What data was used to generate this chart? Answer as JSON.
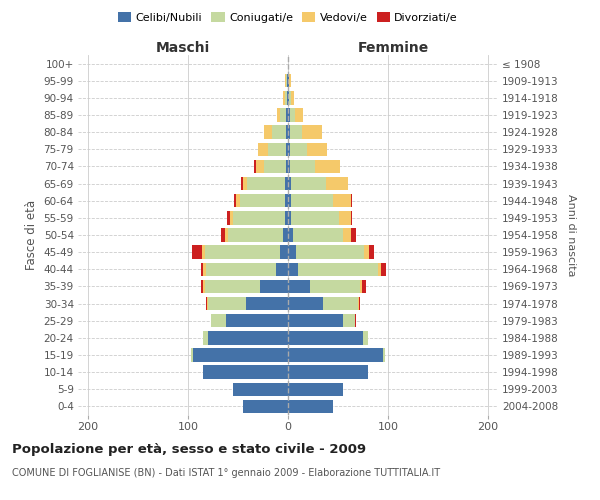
{
  "age_groups": [
    "0-4",
    "5-9",
    "10-14",
    "15-19",
    "20-24",
    "25-29",
    "30-34",
    "35-39",
    "40-44",
    "45-49",
    "50-54",
    "55-59",
    "60-64",
    "65-69",
    "70-74",
    "75-79",
    "80-84",
    "85-89",
    "90-94",
    "95-99",
    "100+"
  ],
  "birth_years": [
    "2004-2008",
    "1999-2003",
    "1994-1998",
    "1989-1993",
    "1984-1988",
    "1979-1983",
    "1974-1978",
    "1969-1973",
    "1964-1968",
    "1959-1963",
    "1954-1958",
    "1949-1953",
    "1944-1948",
    "1939-1943",
    "1934-1938",
    "1929-1933",
    "1924-1928",
    "1919-1923",
    "1914-1918",
    "1909-1913",
    "≤ 1908"
  ],
  "maschi": {
    "celibi": [
      45,
      55,
      85,
      95,
      80,
      62,
      42,
      28,
      12,
      8,
      5,
      3,
      3,
      3,
      2,
      2,
      2,
      2,
      1,
      1,
      0
    ],
    "coniugati": [
      0,
      0,
      0,
      2,
      5,
      15,
      38,
      55,
      70,
      75,
      55,
      52,
      45,
      38,
      22,
      18,
      14,
      6,
      2,
      1,
      0
    ],
    "vedovi": [
      0,
      0,
      0,
      0,
      0,
      0,
      1,
      2,
      3,
      3,
      3,
      3,
      4,
      4,
      8,
      10,
      8,
      3,
      2,
      1,
      0
    ],
    "divorziati": [
      0,
      0,
      0,
      0,
      0,
      0,
      1,
      2,
      2,
      10,
      4,
      3,
      2,
      2,
      2,
      0,
      0,
      0,
      0,
      0,
      0
    ]
  },
  "femmine": {
    "nubili": [
      45,
      55,
      80,
      95,
      75,
      55,
      35,
      22,
      10,
      8,
      5,
      3,
      3,
      3,
      2,
      2,
      2,
      2,
      1,
      1,
      0
    ],
    "coniugate": [
      0,
      0,
      0,
      2,
      5,
      12,
      35,
      50,
      80,
      68,
      50,
      48,
      42,
      35,
      25,
      17,
      12,
      5,
      2,
      0,
      0
    ],
    "vedove": [
      0,
      0,
      0,
      0,
      0,
      0,
      1,
      2,
      3,
      5,
      8,
      12,
      18,
      22,
      25,
      20,
      20,
      8,
      3,
      2,
      0
    ],
    "divorziate": [
      0,
      0,
      0,
      0,
      0,
      1,
      1,
      4,
      5,
      5,
      5,
      1,
      1,
      0,
      0,
      0,
      0,
      0,
      0,
      0,
      0
    ]
  },
  "colors": {
    "celibi": "#4472a8",
    "coniugati": "#c5d9a0",
    "vedovi": "#f5c96a",
    "divorziati": "#cc2020"
  },
  "xlim": 210,
  "title": "Popolazione per età, sesso e stato civile - 2009",
  "subtitle": "COMUNE DI FOGLIANISE (BN) - Dati ISTAT 1° gennaio 2009 - Elaborazione TUTTITALIA.IT",
  "ylabel_left": "Fasce di età",
  "ylabel_right": "Anni di nascita",
  "xlabel_left": "Maschi",
  "xlabel_right": "Femmine",
  "background_color": "#ffffff",
  "grid_color": "#cccccc"
}
